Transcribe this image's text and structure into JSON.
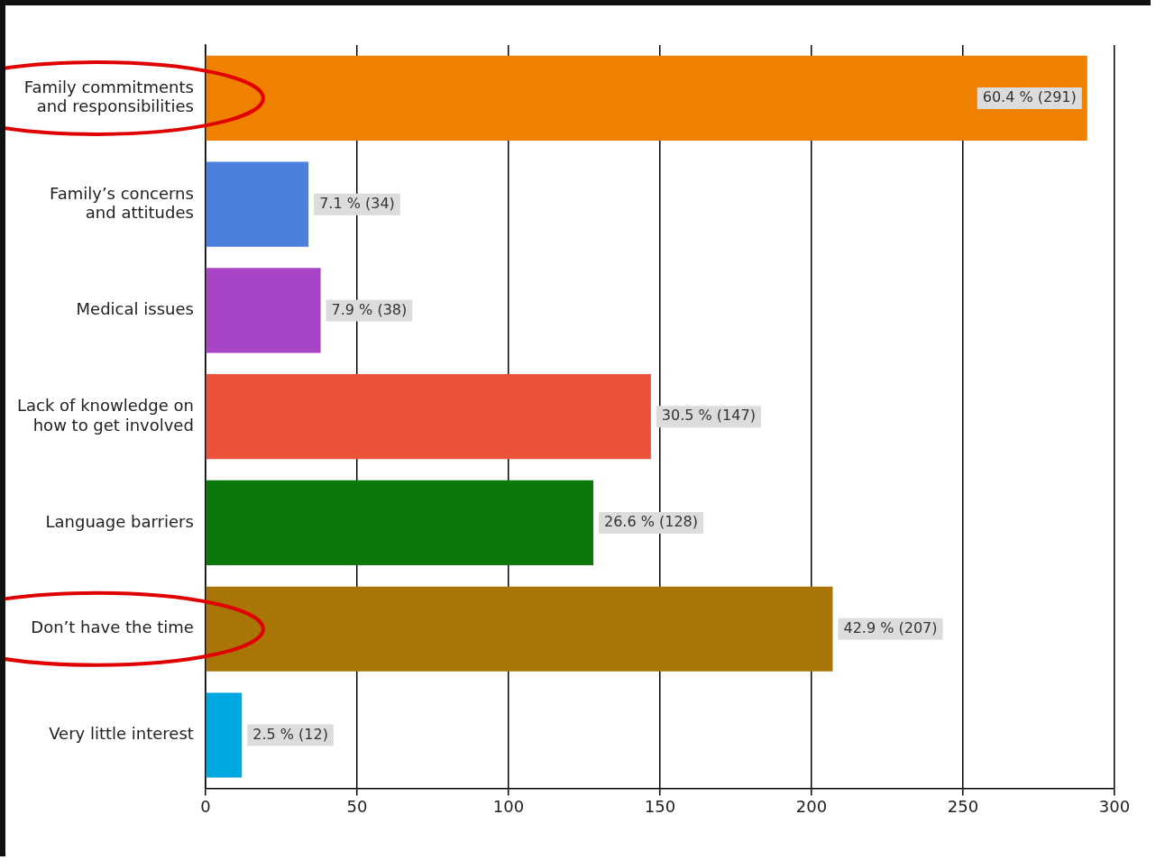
{
  "chart_data": {
    "type": "bar",
    "orientation": "horizontal",
    "categories": [
      "Family commitments and responsibilities",
      "Family’s concerns and attitudes",
      "Medical issues",
      "Lack of knowledge on how to get involved",
      "Language barriers",
      "Don’t have the time",
      "Very little interest"
    ],
    "values": [
      291,
      34,
      38,
      147,
      128,
      207,
      12
    ],
    "colors": [
      "#f08000",
      "#4c80dc",
      "#a844c6",
      "#ea523a",
      "#0c780c",
      "#a87506",
      "#00a8e2"
    ],
    "value_labels": [
      "60.4 % (291)",
      "7.1 % (34)",
      "7.9 % (38)",
      "30.5 % (147)",
      "26.6 % (128)",
      "42.9 % (207)",
      "2.5 % (12)"
    ],
    "xlim": [
      0,
      300
    ],
    "xticks": [
      0,
      50,
      100,
      150,
      200,
      250,
      300
    ],
    "grid": "x",
    "legend": false
  }
}
